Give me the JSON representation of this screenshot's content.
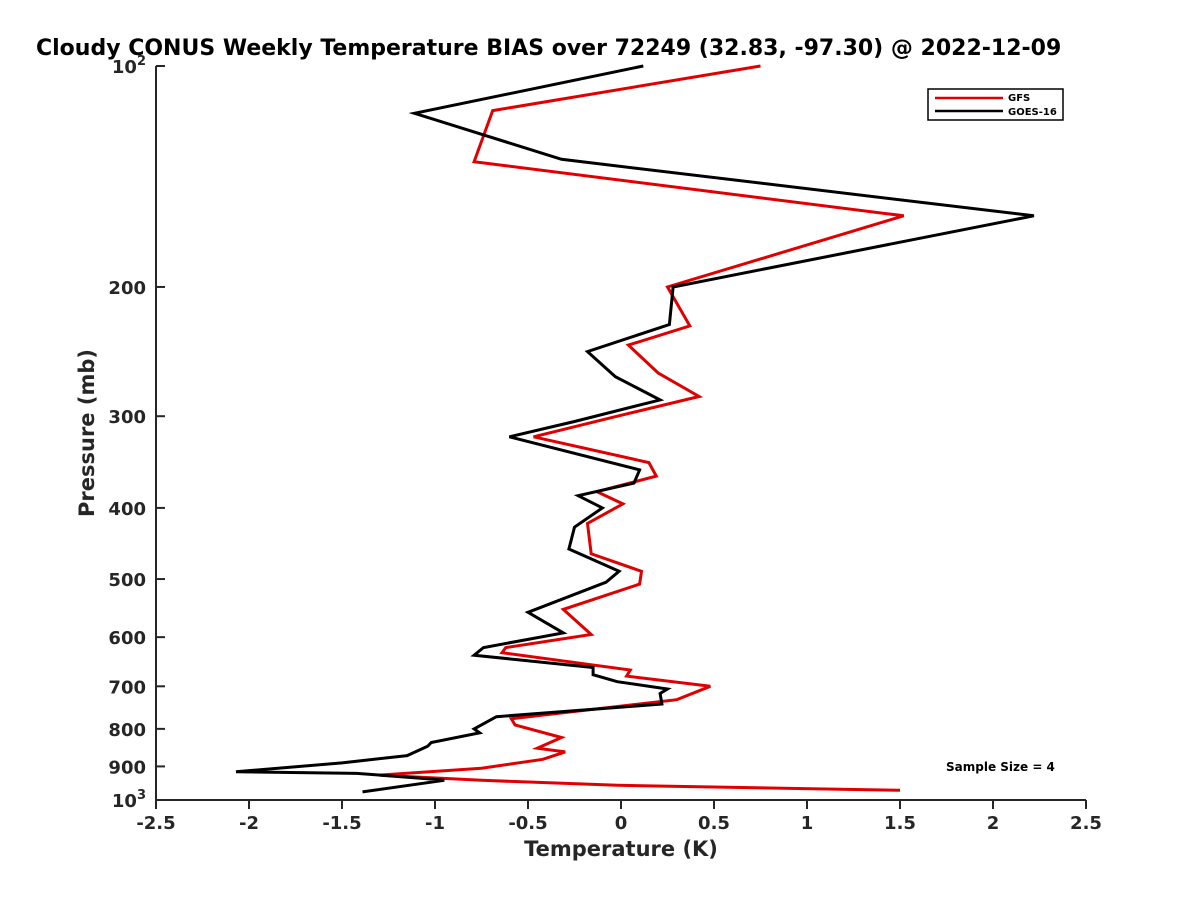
{
  "chart_data": {
    "type": "line",
    "title": "Cloudy CONUS Weekly Temperature BIAS over 72249 (32.83, -97.30) @ 2022-12-09",
    "xlabel": "Temperature (K)",
    "ylabel": "Pressure (mb)",
    "xlim": [
      -2.5,
      2.5
    ],
    "ylim": [
      100,
      1000
    ],
    "y_scale": "log",
    "y_reversed": true,
    "xticks": [
      -2.5,
      -2,
      -1.5,
      -1,
      -0.5,
      0,
      0.5,
      1,
      1.5,
      2,
      2.5
    ],
    "xtick_labels": [
      "-2.5",
      "-2",
      "-1.5",
      "-1",
      "-0.5",
      "0",
      "0.5",
      "1",
      "1.5",
      "2",
      "2.5"
    ],
    "yticks": [
      100,
      200,
      300,
      400,
      500,
      600,
      700,
      800,
      900,
      1000
    ],
    "ytick_labels": [
      {
        "base": "10",
        "exp": "2"
      },
      {
        "base": "200",
        "exp": ""
      },
      {
        "base": "300",
        "exp": ""
      },
      {
        "base": "400",
        "exp": ""
      },
      {
        "base": "500",
        "exp": ""
      },
      {
        "base": "600",
        "exp": ""
      },
      {
        "base": "700",
        "exp": ""
      },
      {
        "base": "800",
        "exp": ""
      },
      {
        "base": "900",
        "exp": ""
      },
      {
        "base": "10",
        "exp": "3"
      }
    ],
    "grid": false,
    "legend_position": "top-right",
    "series": [
      {
        "name": "GFS",
        "color": "#e00000",
        "points": [
          [
            0.75,
            100
          ],
          [
            -0.69,
            115
          ],
          [
            -0.79,
            135
          ],
          [
            1.52,
            160
          ],
          [
            0.25,
            200
          ],
          [
            0.37,
            226
          ],
          [
            0.04,
            240
          ],
          [
            0.2,
            262
          ],
          [
            0.42,
            282
          ],
          [
            -0.02,
            300
          ],
          [
            -0.47,
            320
          ],
          [
            0.15,
            347
          ],
          [
            0.19,
            362
          ],
          [
            -0.13,
            380
          ],
          [
            0.01,
            395
          ],
          [
            -0.18,
            420
          ],
          [
            -0.16,
            462
          ],
          [
            0.11,
            488
          ],
          [
            0.1,
            508
          ],
          [
            -0.31,
            550
          ],
          [
            -0.16,
            595
          ],
          [
            -0.62,
            620
          ],
          [
            -0.64,
            630
          ],
          [
            0.05,
            665
          ],
          [
            0.03,
            678
          ],
          [
            0.48,
            700
          ],
          [
            0.3,
            730
          ],
          [
            -0.59,
            775
          ],
          [
            -0.57,
            790
          ],
          [
            -0.32,
            822
          ],
          [
            -0.45,
            850
          ],
          [
            -0.3,
            860
          ],
          [
            -0.42,
            880
          ],
          [
            -0.75,
            905
          ],
          [
            -1.3,
            925
          ],
          [
            -0.75,
            940
          ],
          [
            -0.02,
            955
          ],
          [
            1.5,
            970
          ]
        ]
      },
      {
        "name": "GOES-16",
        "color": "#000000",
        "points": [
          [
            0.12,
            100
          ],
          [
            -1.11,
            116
          ],
          [
            -0.32,
            134
          ],
          [
            2.22,
            160
          ],
          [
            0.28,
            200
          ],
          [
            0.26,
            225
          ],
          [
            -0.18,
            245
          ],
          [
            -0.03,
            265
          ],
          [
            0.21,
            285
          ],
          [
            -0.25,
            305
          ],
          [
            -0.6,
            320
          ],
          [
            0.1,
            355
          ],
          [
            0.07,
            370
          ],
          [
            -0.23,
            385
          ],
          [
            -0.1,
            400
          ],
          [
            -0.25,
            425
          ],
          [
            -0.28,
            455
          ],
          [
            -0.01,
            488
          ],
          [
            -0.08,
            505
          ],
          [
            -0.5,
            555
          ],
          [
            -0.31,
            592
          ],
          [
            -0.74,
            620
          ],
          [
            -0.79,
            635
          ],
          [
            -0.15,
            660
          ],
          [
            -0.15,
            675
          ],
          [
            -0.02,
            690
          ],
          [
            0.25,
            706
          ],
          [
            0.21,
            716
          ],
          [
            0.22,
            740
          ],
          [
            -0.67,
            770
          ],
          [
            -0.79,
            800
          ],
          [
            -0.76,
            810
          ],
          [
            -1.02,
            835
          ],
          [
            -1.04,
            845
          ],
          [
            -1.15,
            870
          ],
          [
            -1.5,
            890
          ],
          [
            -2.07,
            915
          ],
          [
            -1.42,
            920
          ],
          [
            -1.05,
            935
          ],
          [
            -0.95,
            940
          ],
          [
            -1.39,
            975
          ]
        ]
      }
    ],
    "annotations": [
      "Sample Size = 4"
    ]
  },
  "page": {
    "background": "#ffffff",
    "axis_color": "#262626"
  }
}
